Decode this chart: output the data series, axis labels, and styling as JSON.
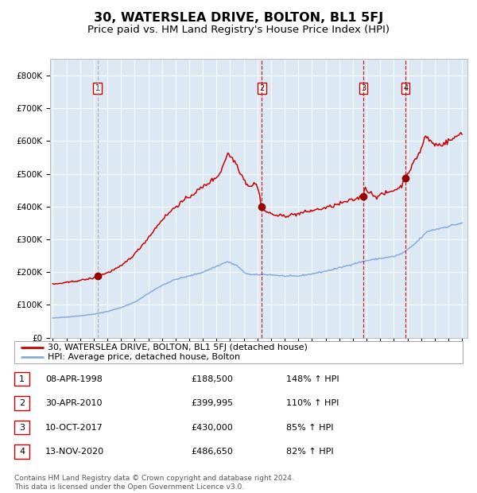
{
  "title": "30, WATERSLEA DRIVE, BOLTON, BL1 5FJ",
  "subtitle": "Price paid vs. HM Land Registry's House Price Index (HPI)",
  "title_fontsize": 11.5,
  "subtitle_fontsize": 9.5,
  "background_color": "#dce9f5",
  "ylim": [
    0,
    850000
  ],
  "yticks": [
    0,
    100000,
    200000,
    300000,
    400000,
    500000,
    600000,
    700000,
    800000
  ],
  "ytick_labels": [
    "£0",
    "£100K",
    "£200K",
    "£300K",
    "£400K",
    "£500K",
    "£600K",
    "£700K",
    "£800K"
  ],
  "sale_years": [
    1998.27,
    2010.33,
    2017.77,
    2020.87
  ],
  "sale_prices": [
    188500,
    399995,
    430000,
    486650
  ],
  "sale_labels": [
    "1",
    "2",
    "3",
    "4"
  ],
  "sale_date_strs": [
    "08-APR-1998",
    "30-APR-2010",
    "10-OCT-2017",
    "13-NOV-2020"
  ],
  "sale_pct_strs": [
    "148% ↑ HPI",
    "110% ↑ HPI",
    "85% ↑ HPI",
    "82% ↑ HPI"
  ],
  "sale_price_strs": [
    "£188,500",
    "£399,995",
    "£430,000",
    "£486,650"
  ],
  "hpi_line_color": "#88aadd",
  "price_line_color": "#cc0000",
  "dot_color": "#990000",
  "legend_label_price": "30, WATERSLEA DRIVE, BOLTON, BL1 5FJ (detached house)",
  "legend_label_hpi": "HPI: Average price, detached house, Bolton",
  "footer": "Contains HM Land Registry data © Crown copyright and database right 2024.\nThis data is licensed under the Open Government Licence v3.0.",
  "vline_colors": [
    "#aaaaaa",
    "#cc0000",
    "#cc0000",
    "#cc0000"
  ]
}
